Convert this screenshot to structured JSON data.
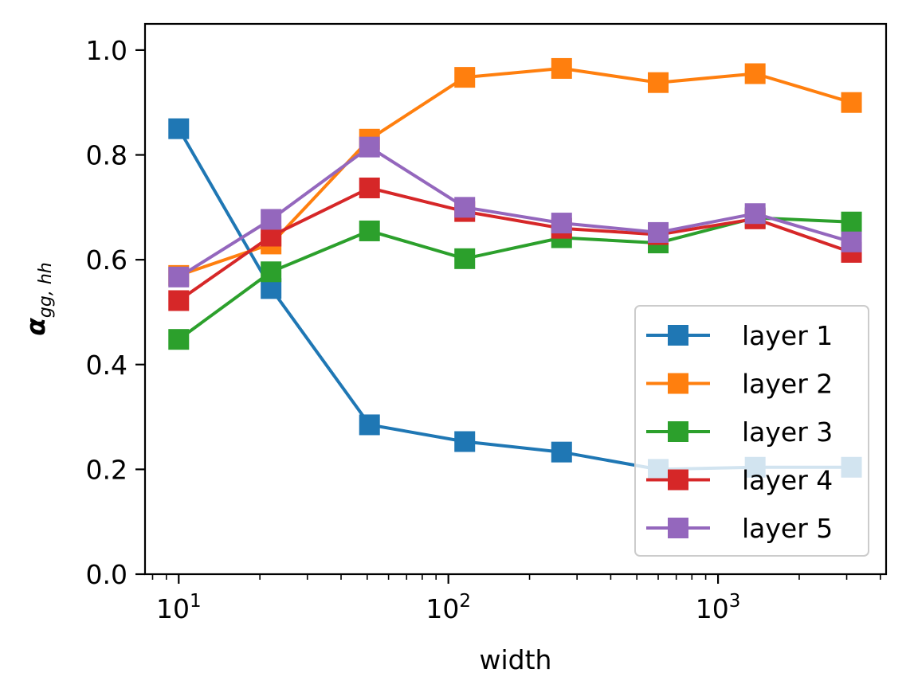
{
  "chart_data": {
    "type": "line",
    "title": "",
    "xlabel": "width",
    "ylabel_main": "α",
    "ylabel_sub": "gg, hh",
    "x_scale": "log",
    "xlim": [
      7.5,
      4200
    ],
    "ylim": [
      0.0,
      1.05
    ],
    "grid": false,
    "legend_location": "lower right",
    "x": [
      10,
      22,
      51,
      115,
      263,
      600,
      1373,
      3125
    ],
    "x_ticks": [
      {
        "value": 10,
        "base": "10",
        "exp": "1"
      },
      {
        "value": 100,
        "base": "10",
        "exp": "2"
      },
      {
        "value": 1000,
        "base": "10",
        "exp": "3"
      }
    ],
    "y_ticks": [
      {
        "value": 0.0,
        "label": "0.0"
      },
      {
        "value": 0.2,
        "label": "0.2"
      },
      {
        "value": 0.4,
        "label": "0.4"
      },
      {
        "value": 0.6,
        "label": "0.6"
      },
      {
        "value": 0.8,
        "label": "0.8"
      },
      {
        "value": 1.0,
        "label": "1.0"
      }
    ],
    "series": [
      {
        "name": "layer 1",
        "color": "#1f77b4",
        "values": [
          0.85,
          0.545,
          0.285,
          0.253,
          0.233,
          0.2,
          0.204,
          0.204
        ]
      },
      {
        "name": "layer 2",
        "color": "#ff7f0e",
        "values": [
          0.57,
          0.63,
          0.83,
          0.948,
          0.965,
          0.938,
          0.955,
          0.9
        ]
      },
      {
        "name": "layer 3",
        "color": "#2ca02c",
        "values": [
          0.448,
          0.577,
          0.655,
          0.602,
          0.642,
          0.632,
          0.68,
          0.672
        ]
      },
      {
        "name": "layer 4",
        "color": "#d62728",
        "values": [
          0.522,
          0.645,
          0.737,
          0.692,
          0.66,
          0.648,
          0.678,
          0.614
        ]
      },
      {
        "name": "layer 5",
        "color": "#9467bd",
        "values": [
          0.567,
          0.677,
          0.815,
          0.7,
          0.67,
          0.652,
          0.688,
          0.634
        ]
      }
    ]
  }
}
